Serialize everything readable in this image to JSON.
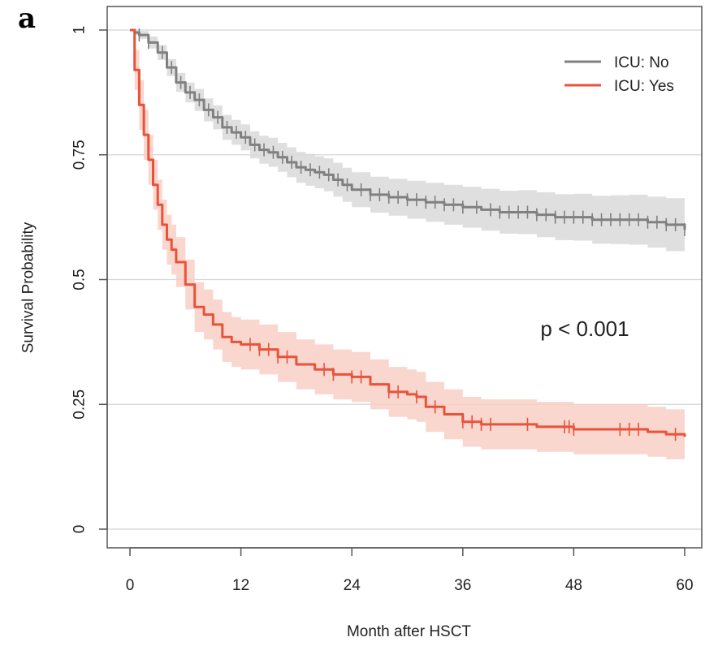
{
  "panel_label": "a",
  "chart_data": {
    "type": "line",
    "subtype": "kaplan-meier survival curve with confidence bands",
    "title": "",
    "xlabel": "Month after HSCT",
    "ylabel": "Survival Probability",
    "xlim": [
      0,
      60
    ],
    "ylim": [
      0,
      1
    ],
    "x_ticks": [
      0,
      12,
      24,
      36,
      48,
      60
    ],
    "y_ticks": [
      0,
      0.25,
      0.5,
      0.75,
      1
    ],
    "x_tick_labels": [
      "0",
      "12",
      "24",
      "36",
      "48",
      "60"
    ],
    "y_tick_labels": [
      "0",
      "0.25",
      "0.5",
      "0.75",
      "1"
    ],
    "grid": "horizontal",
    "legend_position": "top-right",
    "annotation": "p < 0.001",
    "series": [
      {
        "name": "ICU: No",
        "color": "#808080",
        "band_color": "#d9d9d9",
        "x": [
          0,
          0.5,
          1,
          2,
          3,
          4,
          5,
          6,
          7,
          8,
          9,
          10,
          11,
          12,
          13,
          14,
          15,
          16,
          17,
          18,
          19,
          20,
          21,
          22,
          23,
          24,
          26,
          28,
          30,
          32,
          34,
          36,
          38,
          40,
          42,
          44,
          46,
          48,
          50,
          52,
          54,
          56,
          58,
          60
        ],
        "y": [
          1.0,
          0.995,
          0.99,
          0.975,
          0.955,
          0.925,
          0.895,
          0.875,
          0.86,
          0.84,
          0.825,
          0.805,
          0.795,
          0.785,
          0.77,
          0.76,
          0.755,
          0.745,
          0.735,
          0.725,
          0.72,
          0.715,
          0.71,
          0.7,
          0.69,
          0.68,
          0.67,
          0.665,
          0.66,
          0.655,
          0.65,
          0.645,
          0.64,
          0.635,
          0.635,
          0.63,
          0.625,
          0.625,
          0.62,
          0.62,
          0.62,
          0.615,
          0.61,
          0.6
        ],
        "lower": [
          1.0,
          0.99,
          0.982,
          0.963,
          0.94,
          0.908,
          0.876,
          0.855,
          0.838,
          0.817,
          0.801,
          0.78,
          0.77,
          0.759,
          0.743,
          0.732,
          0.726,
          0.716,
          0.705,
          0.694,
          0.688,
          0.683,
          0.677,
          0.666,
          0.656,
          0.645,
          0.634,
          0.628,
          0.622,
          0.616,
          0.61,
          0.604,
          0.598,
          0.592,
          0.591,
          0.585,
          0.579,
          0.578,
          0.572,
          0.571,
          0.57,
          0.564,
          0.557,
          0.545
        ],
        "upper": [
          1.0,
          1.0,
          0.998,
          0.987,
          0.97,
          0.942,
          0.914,
          0.895,
          0.882,
          0.863,
          0.849,
          0.83,
          0.82,
          0.811,
          0.797,
          0.788,
          0.784,
          0.774,
          0.765,
          0.756,
          0.752,
          0.747,
          0.743,
          0.734,
          0.724,
          0.715,
          0.706,
          0.702,
          0.698,
          0.694,
          0.69,
          0.686,
          0.682,
          0.678,
          0.679,
          0.675,
          0.671,
          0.672,
          0.668,
          0.669,
          0.67,
          0.666,
          0.663,
          0.655
        ],
        "censor_x": [
          1,
          2,
          3.5,
          4.5,
          5.5,
          6.5,
          7.5,
          8.5,
          9.5,
          10.5,
          11.5,
          12.5,
          13.5,
          14.5,
          15.5,
          16.5,
          17.5,
          18.5,
          19.5,
          20.5,
          21.5,
          22.5,
          23.5,
          25,
          26,
          27,
          28,
          29,
          30,
          31,
          32,
          33,
          34,
          35,
          36,
          37.5,
          39,
          40,
          41,
          42,
          43,
          44,
          45,
          46,
          47,
          48,
          49,
          50,
          51,
          52,
          53,
          54,
          55,
          56,
          57,
          58,
          59,
          60
        ]
      },
      {
        "name": "ICU: Yes",
        "color": "#e8533a",
        "band_color": "#f8cfc6",
        "x": [
          0,
          0.5,
          1,
          1.5,
          2,
          2.5,
          3,
          3.5,
          4,
          4.5,
          5,
          6,
          7,
          8,
          9,
          10,
          11,
          12,
          14,
          16,
          18,
          20,
          22,
          24,
          26,
          28,
          30,
          31,
          32,
          34,
          36,
          38,
          40,
          44,
          48,
          52,
          56,
          58,
          60
        ],
        "y": [
          1.0,
          0.92,
          0.85,
          0.79,
          0.74,
          0.69,
          0.65,
          0.61,
          0.58,
          0.56,
          0.535,
          0.49,
          0.445,
          0.43,
          0.41,
          0.385,
          0.375,
          0.37,
          0.36,
          0.345,
          0.33,
          0.32,
          0.31,
          0.305,
          0.29,
          0.275,
          0.27,
          0.265,
          0.245,
          0.23,
          0.215,
          0.21,
          0.21,
          0.205,
          0.2,
          0.2,
          0.195,
          0.19,
          0.185
        ],
        "lower": [
          1.0,
          0.88,
          0.8,
          0.74,
          0.69,
          0.64,
          0.6,
          0.56,
          0.53,
          0.51,
          0.485,
          0.44,
          0.395,
          0.38,
          0.36,
          0.335,
          0.325,
          0.32,
          0.31,
          0.295,
          0.28,
          0.27,
          0.26,
          0.255,
          0.24,
          0.225,
          0.22,
          0.215,
          0.195,
          0.18,
          0.165,
          0.16,
          0.16,
          0.155,
          0.15,
          0.15,
          0.145,
          0.14,
          0.14
        ],
        "upper": [
          1.0,
          0.96,
          0.9,
          0.84,
          0.79,
          0.74,
          0.7,
          0.66,
          0.63,
          0.61,
          0.585,
          0.54,
          0.495,
          0.48,
          0.46,
          0.435,
          0.425,
          0.42,
          0.41,
          0.395,
          0.38,
          0.37,
          0.36,
          0.355,
          0.34,
          0.325,
          0.32,
          0.315,
          0.295,
          0.28,
          0.265,
          0.26,
          0.26,
          0.255,
          0.25,
          0.25,
          0.245,
          0.24,
          0.235
        ],
        "censor_x": [
          13,
          14,
          15,
          16,
          17,
          21,
          22,
          24,
          25,
          28,
          29,
          31,
          33,
          36,
          37,
          38,
          39,
          43,
          47,
          47.5,
          48,
          53,
          54,
          55,
          59
        ]
      }
    ]
  }
}
